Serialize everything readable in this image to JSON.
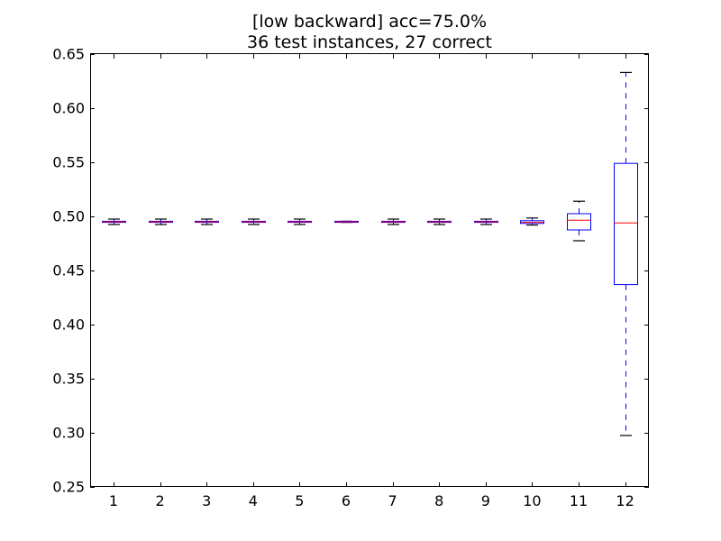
{
  "chart_data": {
    "type": "boxplot",
    "title_lines": [
      "[low backward] acc=75.0%",
      "36 test instances, 27 correct"
    ],
    "xlabel": "",
    "ylabel": "",
    "ylim": [
      0.25,
      0.65
    ],
    "yticks": [
      0.25,
      0.3,
      0.35,
      0.4,
      0.45,
      0.5,
      0.55,
      0.6,
      0.65
    ],
    "ytick_labels": [
      "0.25",
      "0.30",
      "0.35",
      "0.40",
      "0.45",
      "0.50",
      "0.55",
      "0.60",
      "0.65"
    ],
    "categories": [
      "1",
      "2",
      "3",
      "4",
      "5",
      "6",
      "7",
      "8",
      "9",
      "10",
      "11",
      "12"
    ],
    "grid": false,
    "colors": {
      "box": "#0000ff",
      "median": "#ff0000",
      "whisker": "#0000ff",
      "cap": "#000000",
      "axes": "#000000"
    },
    "boxes": [
      {
        "label": "1",
        "whisker_low": 0.4925,
        "q1": 0.4945,
        "median": 0.495,
        "q3": 0.4955,
        "whisker_high": 0.4975
      },
      {
        "label": "2",
        "whisker_low": 0.4925,
        "q1": 0.4945,
        "median": 0.495,
        "q3": 0.4955,
        "whisker_high": 0.4975
      },
      {
        "label": "3",
        "whisker_low": 0.4925,
        "q1": 0.4945,
        "median": 0.495,
        "q3": 0.4955,
        "whisker_high": 0.4975
      },
      {
        "label": "4",
        "whisker_low": 0.4925,
        "q1": 0.4945,
        "median": 0.495,
        "q3": 0.4955,
        "whisker_high": 0.4975
      },
      {
        "label": "5",
        "whisker_low": 0.4925,
        "q1": 0.4945,
        "median": 0.495,
        "q3": 0.4955,
        "whisker_high": 0.4975
      },
      {
        "label": "6",
        "whisker_low": 0.4945,
        "q1": 0.4945,
        "median": 0.495,
        "q3": 0.4955,
        "whisker_high": 0.4955
      },
      {
        "label": "7",
        "whisker_low": 0.4925,
        "q1": 0.4945,
        "median": 0.495,
        "q3": 0.4955,
        "whisker_high": 0.4975
      },
      {
        "label": "8",
        "whisker_low": 0.4925,
        "q1": 0.4945,
        "median": 0.495,
        "q3": 0.4955,
        "whisker_high": 0.4975
      },
      {
        "label": "9",
        "whisker_low": 0.4925,
        "q1": 0.4945,
        "median": 0.495,
        "q3": 0.4955,
        "whisker_high": 0.4975
      },
      {
        "label": "10",
        "whisker_low": 0.492,
        "q1": 0.4935,
        "median": 0.4945,
        "q3": 0.496,
        "whisker_high": 0.4985
      },
      {
        "label": "11",
        "whisker_low": 0.4775,
        "q1": 0.4875,
        "median": 0.4965,
        "q3": 0.5025,
        "whisker_high": 0.514
      },
      {
        "label": "12",
        "whisker_low": 0.2975,
        "q1": 0.437,
        "median": 0.494,
        "q3": 0.549,
        "whisker_high": 0.633
      }
    ]
  }
}
